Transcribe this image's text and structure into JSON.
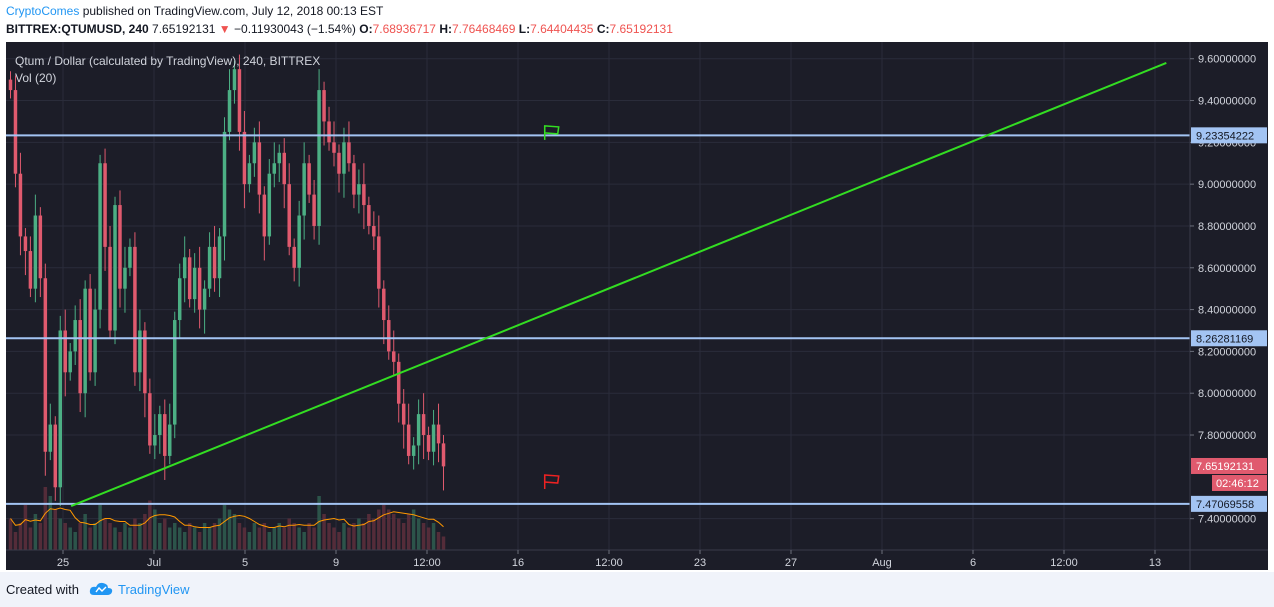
{
  "header": {
    "author": "CryptoComes",
    "published": " published on TradingView.com, July 12, 2018 00:13 EST",
    "symbol": "BITTREX:QTUMUSD, 240",
    "last": "7.65192131",
    "change": "−0.11930043 (−1.54%)",
    "o_label": "O:",
    "o_value": "7.68936717",
    "h_label": "H:",
    "h_value": "7.76468469",
    "l_label": "L:",
    "l_value": "7.64404435",
    "c_label": "C:",
    "c_value": "7.65192131"
  },
  "legend": {
    "title": "Qtum / Dollar (calculated by TradingView), 240, BITTREX",
    "volume": "Vol (20)"
  },
  "footer": {
    "created_with": "Created with",
    "brand": "TradingView"
  },
  "colors": {
    "background": "#1c1d28",
    "up": "#4caf84",
    "down": "#e05a6e",
    "trendline": "#33dd22",
    "hline": "#a3c4f3",
    "price_badge": "#e05a6e",
    "ma": "#ff9800"
  },
  "chart_data": {
    "type": "candlestick",
    "ylim": [
      7.25,
      9.68
    ],
    "y_ticks": [
      "9.60000000",
      "9.40000000",
      "9.20000000",
      "9.00000000",
      "8.80000000",
      "8.60000000",
      "8.40000000",
      "8.20000000",
      "8.00000000",
      "7.80000000",
      "7.40000000"
    ],
    "x_ticks": [
      "25",
      "Jul",
      "5",
      "9",
      "12:00",
      "16",
      "12:00",
      "23",
      "27",
      "Aug",
      "6",
      "12:00",
      "13"
    ],
    "hlines": [
      {
        "label": "9.23354222",
        "value": 9.23354222
      },
      {
        "label": "8.26281169",
        "value": 8.26281169
      },
      {
        "label": "7.47069558",
        "value": 7.47069558
      }
    ],
    "trendline": {
      "from": {
        "t": 0.055,
        "y": 7.46
      },
      "to": {
        "t": 0.98,
        "y": 9.58
      }
    },
    "last_price": "7.65192131",
    "countdown": "02:46:12",
    "flags": [
      {
        "color": "green",
        "t": 0.455,
        "y": 9.25
      },
      {
        "color": "red",
        "t": 0.455,
        "y": 7.58
      }
    ],
    "closes": [
      9.45,
      9.05,
      8.75,
      8.68,
      8.5,
      8.85,
      8.55,
      7.72,
      7.85,
      7.55,
      8.3,
      8.1,
      8.2,
      8.35,
      8.0,
      8.5,
      8.1,
      8.4,
      9.1,
      8.7,
      8.3,
      8.9,
      8.5,
      8.6,
      8.7,
      8.1,
      8.3,
      8.0,
      7.75,
      7.8,
      7.9,
      7.7,
      7.85,
      8.35,
      8.55,
      8.65,
      8.45,
      8.6,
      8.4,
      8.5,
      8.7,
      8.55,
      8.75,
      9.25,
      9.45,
      9.55,
      9.25,
      9.0,
      9.1,
      9.2,
      8.95,
      8.75,
      9.05,
      9.1,
      9.15,
      9.0,
      8.7,
      8.6,
      8.85,
      9.1,
      8.95,
      8.8,
      9.45,
      9.3,
      9.2,
      9.15,
      9.05,
      9.2,
      9.1,
      8.95,
      9.0,
      8.9,
      8.8,
      8.75,
      8.5,
      8.35,
      8.2,
      8.15,
      7.95,
      7.85,
      7.7,
      7.75,
      7.9,
      7.8,
      7.72,
      7.85,
      7.76,
      7.65
    ],
    "volumes": [
      0.35,
      0.2,
      0.3,
      0.5,
      0.25,
      0.4,
      0.3,
      0.7,
      0.6,
      0.45,
      0.35,
      0.3,
      0.25,
      0.2,
      0.3,
      0.4,
      0.25,
      0.3,
      0.5,
      0.35,
      0.3,
      0.25,
      0.2,
      0.3,
      0.25,
      0.35,
      0.3,
      0.4,
      0.55,
      0.45,
      0.3,
      0.35,
      0.25,
      0.3,
      0.25,
      0.2,
      0.3,
      0.25,
      0.2,
      0.3,
      0.25,
      0.3,
      0.35,
      0.5,
      0.45,
      0.4,
      0.3,
      0.25,
      0.2,
      0.3,
      0.25,
      0.3,
      0.2,
      0.25,
      0.3,
      0.25,
      0.35,
      0.3,
      0.25,
      0.2,
      0.3,
      0.25,
      0.6,
      0.4,
      0.3,
      0.25,
      0.2,
      0.3,
      0.25,
      0.3,
      0.35,
      0.3,
      0.4,
      0.35,
      0.45,
      0.5,
      0.45,
      0.4,
      0.35,
      0.3,
      0.4,
      0.45,
      0.35,
      0.3,
      0.25,
      0.3,
      0.2,
      0.15
    ]
  }
}
